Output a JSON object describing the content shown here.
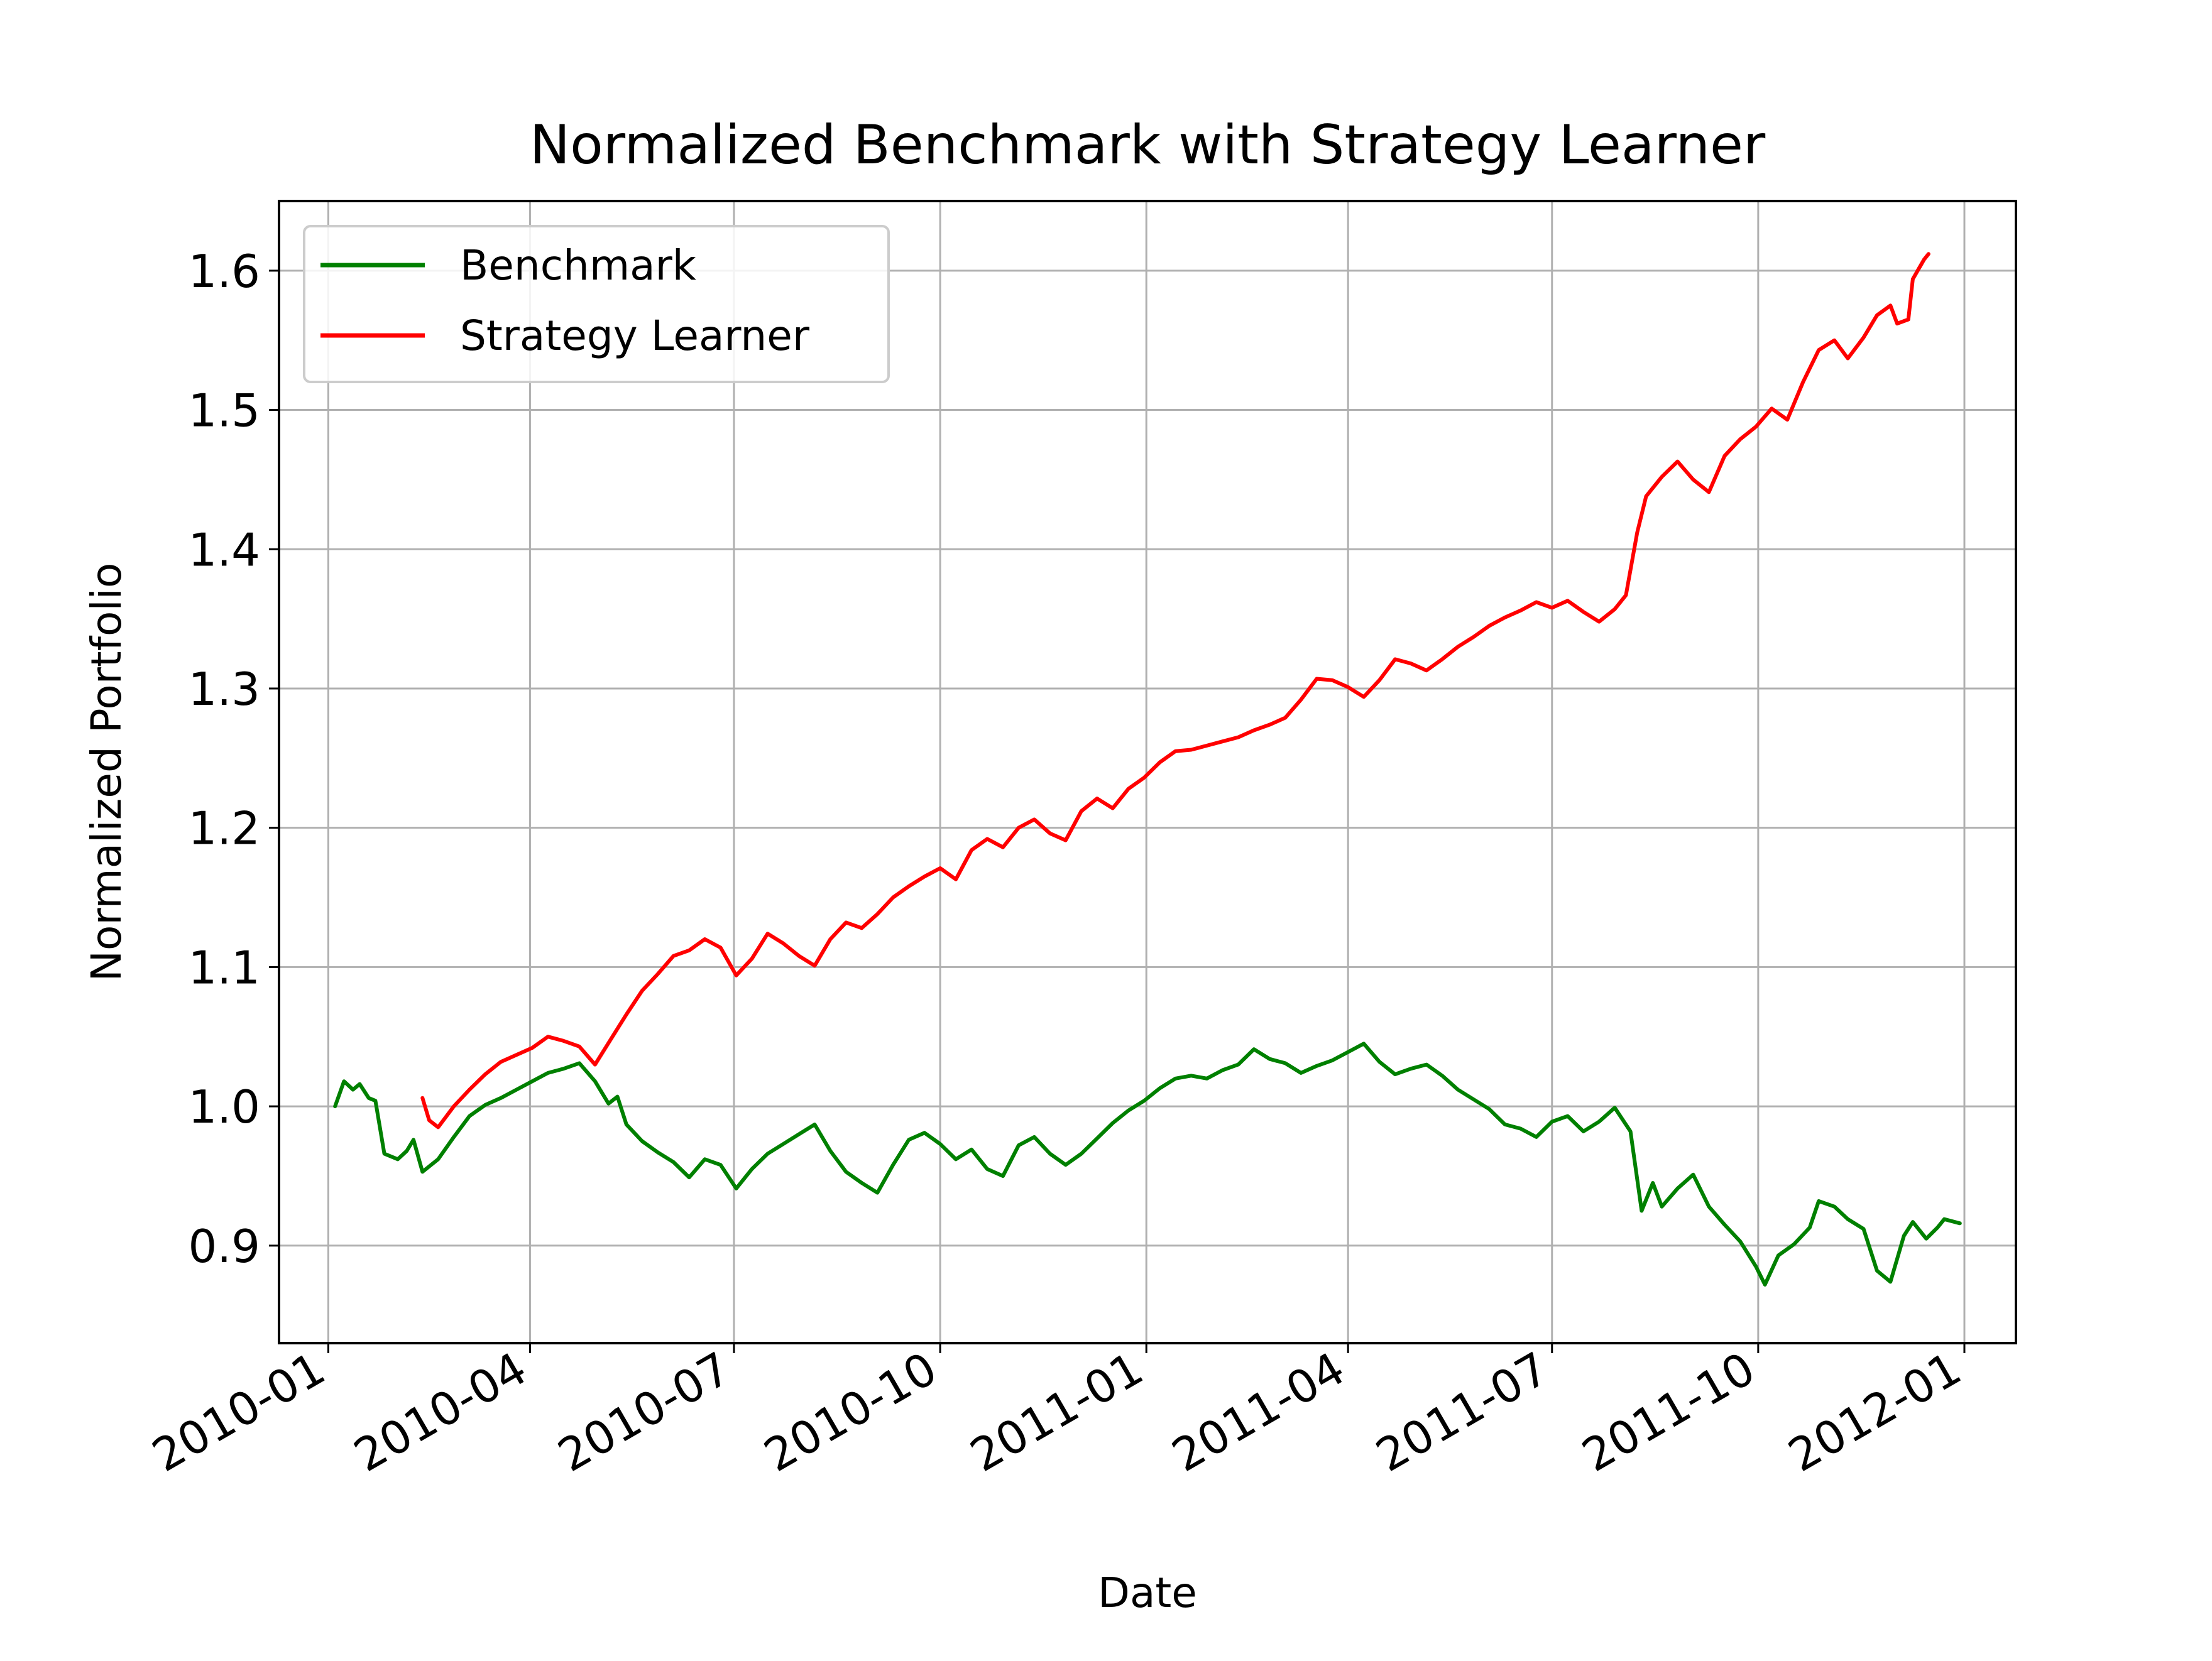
{
  "chart_data": {
    "type": "line",
    "title": "Normalized Benchmark with Strategy Learner",
    "xlabel": "Date",
    "ylabel": "Normalized Portfolio",
    "xlim": [
      "2009-12-10",
      "2012-01-24"
    ],
    "ylim": [
      0.83,
      1.65
    ],
    "x_ticks": [
      "2010-01",
      "2010-04",
      "2010-07",
      "2010-10",
      "2011-01",
      "2011-04",
      "2011-07",
      "2011-10",
      "2012-01"
    ],
    "y_ticks": [
      "0.9",
      "1.0",
      "1.1",
      "1.2",
      "1.3",
      "1.4",
      "1.5",
      "1.6"
    ],
    "grid": true,
    "legend": "upper-left",
    "series": [
      {
        "name": "Benchmark",
        "color": "#008000",
        "points": [
          [
            "2010-01-04",
            1.0
          ],
          [
            "2010-01-08",
            1.018
          ],
          [
            "2010-01-12",
            1.012
          ],
          [
            "2010-01-15",
            1.016
          ],
          [
            "2010-01-19",
            1.006
          ],
          [
            "2010-01-22",
            1.004
          ],
          [
            "2010-01-26",
            0.966
          ],
          [
            "2010-02-01",
            0.962
          ],
          [
            "2010-02-05",
            0.968
          ],
          [
            "2010-02-08",
            0.976
          ],
          [
            "2010-02-12",
            0.953
          ],
          [
            "2010-02-19",
            0.962
          ],
          [
            "2010-02-26",
            0.978
          ],
          [
            "2010-03-05",
            0.993
          ],
          [
            "2010-03-12",
            1.001
          ],
          [
            "2010-03-19",
            1.006
          ],
          [
            "2010-03-26",
            1.012
          ],
          [
            "2010-04-02",
            1.018
          ],
          [
            "2010-04-09",
            1.024
          ],
          [
            "2010-04-16",
            1.027
          ],
          [
            "2010-04-23",
            1.031
          ],
          [
            "2010-04-30",
            1.018
          ],
          [
            "2010-05-06",
            1.002
          ],
          [
            "2010-05-10",
            1.007
          ],
          [
            "2010-05-14",
            0.987
          ],
          [
            "2010-05-21",
            0.975
          ],
          [
            "2010-05-28",
            0.967
          ],
          [
            "2010-06-04",
            0.96
          ],
          [
            "2010-06-11",
            0.949
          ],
          [
            "2010-06-18",
            0.962
          ],
          [
            "2010-06-25",
            0.958
          ],
          [
            "2010-07-02",
            0.941
          ],
          [
            "2010-07-09",
            0.955
          ],
          [
            "2010-07-16",
            0.966
          ],
          [
            "2010-07-23",
            0.973
          ],
          [
            "2010-07-30",
            0.98
          ],
          [
            "2010-08-06",
            0.987
          ],
          [
            "2010-08-13",
            0.968
          ],
          [
            "2010-08-20",
            0.953
          ],
          [
            "2010-08-27",
            0.945
          ],
          [
            "2010-09-03",
            0.938
          ],
          [
            "2010-09-10",
            0.958
          ],
          [
            "2010-09-17",
            0.976
          ],
          [
            "2010-09-24",
            0.981
          ],
          [
            "2010-10-01",
            0.973
          ],
          [
            "2010-10-08",
            0.962
          ],
          [
            "2010-10-15",
            0.969
          ],
          [
            "2010-10-22",
            0.955
          ],
          [
            "2010-10-29",
            0.95
          ],
          [
            "2010-11-05",
            0.972
          ],
          [
            "2010-11-12",
            0.978
          ],
          [
            "2010-11-19",
            0.966
          ],
          [
            "2010-11-26",
            0.958
          ],
          [
            "2010-12-03",
            0.966
          ],
          [
            "2010-12-10",
            0.977
          ],
          [
            "2010-12-17",
            0.988
          ],
          [
            "2010-12-24",
            0.997
          ],
          [
            "2010-12-31",
            1.004
          ],
          [
            "2011-01-07",
            1.013
          ],
          [
            "2011-01-14",
            1.02
          ],
          [
            "2011-01-21",
            1.022
          ],
          [
            "2011-01-28",
            1.02
          ],
          [
            "2011-02-04",
            1.026
          ],
          [
            "2011-02-11",
            1.03
          ],
          [
            "2011-02-18",
            1.041
          ],
          [
            "2011-02-25",
            1.034
          ],
          [
            "2011-03-04",
            1.031
          ],
          [
            "2011-03-11",
            1.024
          ],
          [
            "2011-03-18",
            1.029
          ],
          [
            "2011-03-25",
            1.033
          ],
          [
            "2011-04-01",
            1.039
          ],
          [
            "2011-04-08",
            1.045
          ],
          [
            "2011-04-15",
            1.032
          ],
          [
            "2011-04-22",
            1.023
          ],
          [
            "2011-04-29",
            1.027
          ],
          [
            "2011-05-06",
            1.03
          ],
          [
            "2011-05-13",
            1.022
          ],
          [
            "2011-05-20",
            1.012
          ],
          [
            "2011-05-27",
            1.005
          ],
          [
            "2011-06-03",
            0.998
          ],
          [
            "2011-06-10",
            0.987
          ],
          [
            "2011-06-17",
            0.984
          ],
          [
            "2011-06-24",
            0.978
          ],
          [
            "2011-07-01",
            0.989
          ],
          [
            "2011-07-08",
            0.993
          ],
          [
            "2011-07-15",
            0.982
          ],
          [
            "2011-07-22",
            0.989
          ],
          [
            "2011-07-29",
            0.999
          ],
          [
            "2011-08-05",
            0.982
          ],
          [
            "2011-08-10",
            0.925
          ],
          [
            "2011-08-15",
            0.945
          ],
          [
            "2011-08-19",
            0.928
          ],
          [
            "2011-08-26",
            0.941
          ],
          [
            "2011-09-02",
            0.951
          ],
          [
            "2011-09-09",
            0.928
          ],
          [
            "2011-09-16",
            0.915
          ],
          [
            "2011-09-23",
            0.903
          ],
          [
            "2011-09-30",
            0.885
          ],
          [
            "2011-10-04",
            0.872
          ],
          [
            "2011-10-10",
            0.893
          ],
          [
            "2011-10-17",
            0.901
          ],
          [
            "2011-10-24",
            0.913
          ],
          [
            "2011-10-28",
            0.932
          ],
          [
            "2011-11-04",
            0.928
          ],
          [
            "2011-11-10",
            0.919
          ],
          [
            "2011-11-17",
            0.912
          ],
          [
            "2011-11-23",
            0.882
          ],
          [
            "2011-11-29",
            0.874
          ],
          [
            "2011-12-05",
            0.907
          ],
          [
            "2011-12-09",
            0.917
          ],
          [
            "2011-12-15",
            0.905
          ],
          [
            "2011-12-20",
            0.913
          ],
          [
            "2011-12-23",
            0.919
          ],
          [
            "2011-12-30",
            0.916
          ]
        ]
      },
      {
        "name": "Strategy Learner",
        "color": "#ff0000",
        "points": [
          [
            "2010-02-12",
            1.006
          ],
          [
            "2010-02-15",
            0.99
          ],
          [
            "2010-02-19",
            0.985
          ],
          [
            "2010-02-26",
            1.0
          ],
          [
            "2010-03-05",
            1.012
          ],
          [
            "2010-03-12",
            1.023
          ],
          [
            "2010-03-19",
            1.032
          ],
          [
            "2010-03-26",
            1.037
          ],
          [
            "2010-04-02",
            1.042
          ],
          [
            "2010-04-09",
            1.05
          ],
          [
            "2010-04-16",
            1.047
          ],
          [
            "2010-04-23",
            1.043
          ],
          [
            "2010-04-30",
            1.03
          ],
          [
            "2010-05-07",
            1.048
          ],
          [
            "2010-05-14",
            1.066
          ],
          [
            "2010-05-21",
            1.083
          ],
          [
            "2010-05-28",
            1.095
          ],
          [
            "2010-06-04",
            1.108
          ],
          [
            "2010-06-11",
            1.112
          ],
          [
            "2010-06-18",
            1.12
          ],
          [
            "2010-06-25",
            1.114
          ],
          [
            "2010-07-02",
            1.094
          ],
          [
            "2010-07-09",
            1.106
          ],
          [
            "2010-07-16",
            1.124
          ],
          [
            "2010-07-23",
            1.117
          ],
          [
            "2010-07-30",
            1.108
          ],
          [
            "2010-08-06",
            1.101
          ],
          [
            "2010-08-13",
            1.12
          ],
          [
            "2010-08-20",
            1.132
          ],
          [
            "2010-08-27",
            1.128
          ],
          [
            "2010-09-03",
            1.138
          ],
          [
            "2010-09-10",
            1.15
          ],
          [
            "2010-09-17",
            1.158
          ],
          [
            "2010-09-24",
            1.165
          ],
          [
            "2010-10-01",
            1.171
          ],
          [
            "2010-10-08",
            1.163
          ],
          [
            "2010-10-15",
            1.184
          ],
          [
            "2010-10-22",
            1.192
          ],
          [
            "2010-10-29",
            1.186
          ],
          [
            "2010-11-05",
            1.2
          ],
          [
            "2010-11-12",
            1.206
          ],
          [
            "2010-11-19",
            1.196
          ],
          [
            "2010-11-26",
            1.191
          ],
          [
            "2010-12-03",
            1.212
          ],
          [
            "2010-12-10",
            1.221
          ],
          [
            "2010-12-17",
            1.214
          ],
          [
            "2010-12-24",
            1.228
          ],
          [
            "2010-12-31",
            1.236
          ],
          [
            "2011-01-07",
            1.247
          ],
          [
            "2011-01-14",
            1.255
          ],
          [
            "2011-01-21",
            1.256
          ],
          [
            "2011-01-28",
            1.259
          ],
          [
            "2011-02-04",
            1.262
          ],
          [
            "2011-02-11",
            1.265
          ],
          [
            "2011-02-18",
            1.27
          ],
          [
            "2011-02-25",
            1.274
          ],
          [
            "2011-03-04",
            1.279
          ],
          [
            "2011-03-11",
            1.292
          ],
          [
            "2011-03-18",
            1.307
          ],
          [
            "2011-03-25",
            1.306
          ],
          [
            "2011-04-01",
            1.301
          ],
          [
            "2011-04-08",
            1.294
          ],
          [
            "2011-04-15",
            1.306
          ],
          [
            "2011-04-22",
            1.321
          ],
          [
            "2011-04-29",
            1.318
          ],
          [
            "2011-05-06",
            1.313
          ],
          [
            "2011-05-13",
            1.321
          ],
          [
            "2011-05-20",
            1.33
          ],
          [
            "2011-05-27",
            1.337
          ],
          [
            "2011-06-03",
            1.345
          ],
          [
            "2011-06-10",
            1.351
          ],
          [
            "2011-06-17",
            1.356
          ],
          [
            "2011-06-24",
            1.362
          ],
          [
            "2011-07-01",
            1.358
          ],
          [
            "2011-07-08",
            1.363
          ],
          [
            "2011-07-15",
            1.355
          ],
          [
            "2011-07-22",
            1.348
          ],
          [
            "2011-07-29",
            1.357
          ],
          [
            "2011-08-03",
            1.367
          ],
          [
            "2011-08-08",
            1.412
          ],
          [
            "2011-08-12",
            1.438
          ],
          [
            "2011-08-19",
            1.452
          ],
          [
            "2011-08-26",
            1.463
          ],
          [
            "2011-09-02",
            1.45
          ],
          [
            "2011-09-09",
            1.441
          ],
          [
            "2011-09-16",
            1.467
          ],
          [
            "2011-09-23",
            1.479
          ],
          [
            "2011-09-30",
            1.488
          ],
          [
            "2011-10-07",
            1.501
          ],
          [
            "2011-10-14",
            1.493
          ],
          [
            "2011-10-21",
            1.52
          ],
          [
            "2011-10-28",
            1.543
          ],
          [
            "2011-11-04",
            1.55
          ],
          [
            "2011-11-10",
            1.537
          ],
          [
            "2011-11-17",
            1.552
          ],
          [
            "2011-11-23",
            1.568
          ],
          [
            "2011-11-29",
            1.575
          ],
          [
            "2011-12-02",
            1.562
          ],
          [
            "2011-12-07",
            1.565
          ],
          [
            "2011-12-09",
            1.594
          ],
          [
            "2011-12-14",
            1.608
          ],
          [
            "2011-12-16",
            1.612
          ]
        ]
      }
    ]
  }
}
